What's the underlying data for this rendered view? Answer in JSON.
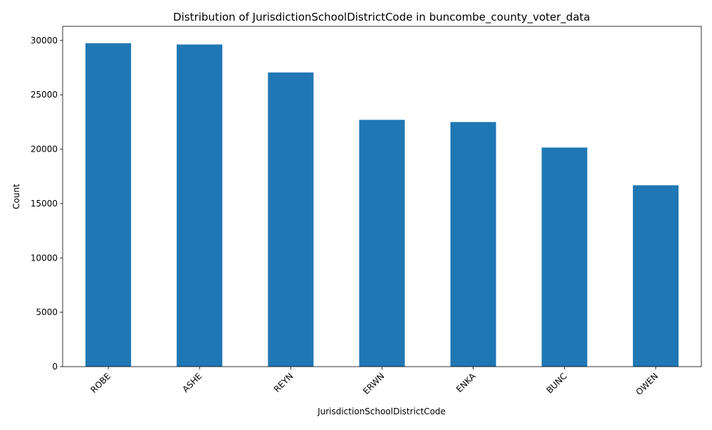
{
  "chart_data": {
    "type": "bar",
    "title": "Distribution of JurisdictionSchoolDistrictCode in buncombe_county_voter_data",
    "xlabel": "JurisdictionSchoolDistrictCode",
    "ylabel": "Count",
    "categories": [
      "ROBE",
      "ASHE",
      "REYN",
      "ERWN",
      "ENKA",
      "BUNC",
      "OWEN"
    ],
    "values": [
      29750,
      29630,
      27060,
      22700,
      22500,
      20150,
      16680
    ],
    "ylim": [
      0,
      31300
    ],
    "yticks": [
      0,
      5000,
      10000,
      15000,
      20000,
      25000,
      30000
    ],
    "bar_color": "#1f77b4",
    "grid": false,
    "legend": "none"
  }
}
